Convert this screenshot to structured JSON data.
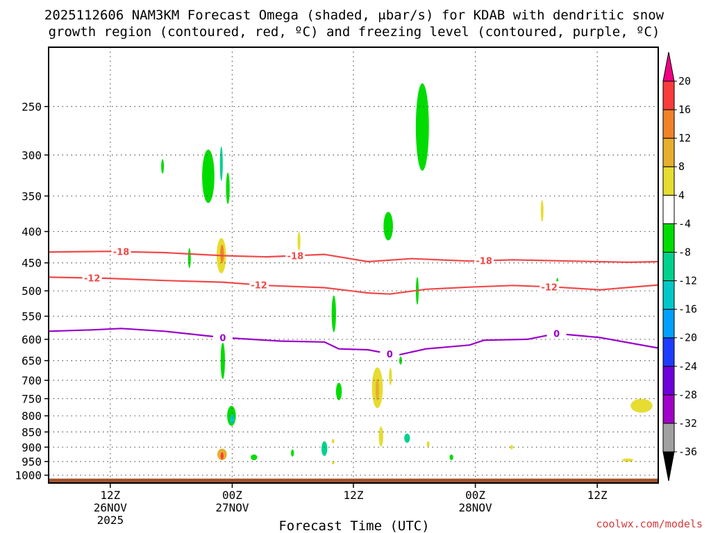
{
  "chart_data": {
    "type": "heatmap",
    "title_line1": "2025112606 NAM3KM Forecast Omega (shaded, μbar/s) for KDAB with dendritic snow",
    "title_line2": "growth region (contoured, red, ºC) and freezing level (contoured, purple, ºC)",
    "xlabel": "Forecast Time (UTC)",
    "credit": "coolwx.com/models",
    "x_range_hours": [
      0,
      84
    ],
    "y_range_hpa": [
      200,
      1030
    ],
    "y_ticks": [
      250,
      300,
      350,
      400,
      450,
      500,
      550,
      600,
      650,
      700,
      750,
      800,
      850,
      900,
      950,
      1000
    ],
    "y_tick_labels": [
      "250",
      "300",
      "350",
      "400",
      "450",
      "500",
      "550",
      "600",
      "650",
      "700",
      "750",
      "800",
      "850",
      "900",
      "950",
      "1000"
    ],
    "x_ticks": [
      {
        "h": 8.5,
        "l1": "12Z",
        "l2": "26NOV",
        "l3": "2025"
      },
      {
        "h": 25.3,
        "l1": "00Z",
        "l2": "27NOV",
        "l3": ""
      },
      {
        "h": 42.0,
        "l1": "12Z",
        "l2": "",
        "l3": ""
      },
      {
        "h": 58.8,
        "l1": "00Z",
        "l2": "28NOV",
        "l3": ""
      },
      {
        "h": 75.6,
        "l1": "12Z",
        "l2": "",
        "l3": ""
      }
    ],
    "colorbar": {
      "levels": [
        -36,
        -32,
        -28,
        -24,
        -20,
        -16,
        -12,
        -8,
        -4,
        4,
        8,
        12,
        16,
        20
      ],
      "labels": [
        "-36",
        "-32",
        "-28",
        "-24",
        "-20",
        "-16",
        "-12",
        "-8",
        "-4",
        "4",
        "8",
        "12",
        "16",
        "20"
      ],
      "colors": [
        "#000000",
        "#a0a0a0",
        "#a000c8",
        "#6e00dc",
        "#1e3cff",
        "#00a0ff",
        "#00c8c8",
        "#00d28c",
        "#00dc00",
        "#ffffff",
        "#e6dc32",
        "#e6af2d",
        "#f08228",
        "#fa3c3c",
        "#f00082"
      ]
    },
    "ground": {
      "color": "#a0522d",
      "pressure_top_hpa": 1013
    },
    "contours": [
      {
        "name": "-18C",
        "label": "-18",
        "color": "#f04848",
        "hours": [
          0,
          8,
          16,
          24,
          30,
          38,
          44,
          50,
          58,
          64,
          72,
          80,
          84
        ],
        "hpa": [
          432,
          431,
          433,
          438,
          440,
          436,
          448,
          443,
          447,
          445,
          447,
          449,
          448
        ],
        "label_hours": [
          10,
          34,
          60
        ]
      },
      {
        "name": "-12C",
        "label": "-12",
        "color": "#f04848",
        "hours": [
          0,
          8,
          16,
          24,
          30,
          38,
          44,
          47,
          52,
          58,
          64,
          70,
          76,
          84
        ],
        "hpa": [
          475,
          477,
          481,
          484,
          490,
          494,
          504,
          506,
          497,
          493,
          490,
          493,
          498,
          489
        ],
        "label_hours": [
          6,
          29,
          69
        ]
      },
      {
        "name": "0C",
        "label": "0",
        "color": "#9a00c8",
        "hours": [
          0,
          6,
          10,
          16,
          24,
          32,
          38,
          40,
          44,
          48,
          52,
          58,
          60,
          66,
          70,
          76,
          84
        ],
        "hpa": [
          582,
          579,
          576,
          582,
          596,
          604,
          606,
          622,
          624,
          637,
          622,
          613,
          602,
          600,
          587,
          596,
          620
        ],
        "label_hours": [
          24,
          47,
          70
        ]
      }
    ],
    "omega_regions": [
      {
        "h": 22.0,
        "p": 325,
        "w": 1.7,
        "hp": 65,
        "v": -5
      },
      {
        "h": 23.8,
        "p": 310,
        "w": 0.4,
        "hp": 40,
        "v": -12
      },
      {
        "h": 24.7,
        "p": 340,
        "w": 0.5,
        "hp": 40,
        "v": -5
      },
      {
        "h": 15.7,
        "p": 313,
        "w": 0.3,
        "hp": 17,
        "v": -5
      },
      {
        "h": 19.4,
        "p": 442,
        "w": 0.3,
        "hp": 33,
        "v": -5
      },
      {
        "h": 51.5,
        "p": 270,
        "w": 1.8,
        "hp": 88,
        "v": -5
      },
      {
        "h": 46.8,
        "p": 392,
        "w": 1.3,
        "hp": 42,
        "v": -5
      },
      {
        "h": 50.8,
        "p": 500,
        "w": 0.3,
        "hp": 52,
        "v": -5
      },
      {
        "h": 39.3,
        "p": 545,
        "w": 0.6,
        "hp": 75,
        "v": -5
      },
      {
        "h": 40.0,
        "p": 730,
        "w": 0.8,
        "hp": 48,
        "v": -5
      },
      {
        "h": 24.0,
        "p": 650,
        "w": 0.6,
        "hp": 90,
        "v": -5
      },
      {
        "h": 25.2,
        "p": 800,
        "w": 1.2,
        "hp": 60,
        "v": -5
      },
      {
        "h": 25.3,
        "p": 810,
        "w": 0.6,
        "hp": 28,
        "v": -14
      },
      {
        "h": 28.3,
        "p": 935,
        "w": 0.9,
        "hp": 20,
        "v": -5
      },
      {
        "h": 33.6,
        "p": 920,
        "w": 0.4,
        "hp": 25,
        "v": -5
      },
      {
        "h": 38.0,
        "p": 905,
        "w": 0.8,
        "hp": 50,
        "v": -10
      },
      {
        "h": 48.5,
        "p": 650,
        "w": 0.2,
        "hp": 20,
        "v": -5
      },
      {
        "h": 49.4,
        "p": 870,
        "w": 0.8,
        "hp": 30,
        "v": -10
      },
      {
        "h": 55.5,
        "p": 935,
        "w": 0.5,
        "hp": 20,
        "v": -5
      },
      {
        "h": 70.1,
        "p": 490,
        "w": 0.25,
        "hp": 28,
        "v": -5
      },
      {
        "h": 23.8,
        "p": 438,
        "w": 1.3,
        "hp": 58,
        "v": 6
      },
      {
        "h": 23.9,
        "p": 435,
        "w": 0.5,
        "hp": 30,
        "v": 13
      },
      {
        "h": 34.5,
        "p": 415,
        "w": 0.4,
        "hp": 30,
        "v": 6
      },
      {
        "h": 68.0,
        "p": 370,
        "w": 0.3,
        "hp": 30,
        "v": 6
      },
      {
        "h": 45.3,
        "p": 720,
        "w": 1.5,
        "hp": 110,
        "v": 6
      },
      {
        "h": 45.3,
        "p": 725,
        "w": 0.5,
        "hp": 60,
        "v": 11
      },
      {
        "h": 47.1,
        "p": 690,
        "w": 0.4,
        "hp": 45,
        "v": 6
      },
      {
        "h": 45.8,
        "p": 865,
        "w": 0.6,
        "hp": 65,
        "v": 6
      },
      {
        "h": 23.9,
        "p": 925,
        "w": 1.3,
        "hp": 40,
        "v": 8
      },
      {
        "h": 23.9,
        "p": 930,
        "w": 0.4,
        "hp": 25,
        "v": 17
      },
      {
        "h": 52.3,
        "p": 890,
        "w": 0.25,
        "hp": 20,
        "v": 6
      },
      {
        "h": 63.8,
        "p": 900,
        "w": 0.4,
        "hp": 15,
        "v": 6
      },
      {
        "h": 81.7,
        "p": 770,
        "w": 3.0,
        "hp": 40,
        "v": 6
      },
      {
        "h": 79.8,
        "p": 945,
        "w": 1.5,
        "hp": 12,
        "v": 6
      },
      {
        "h": 39.2,
        "p": 880,
        "w": 0.15,
        "hp": 14,
        "v": 6
      },
      {
        "h": 39.2,
        "p": 955,
        "w": 0.15,
        "hp": 10,
        "v": 6
      }
    ]
  }
}
